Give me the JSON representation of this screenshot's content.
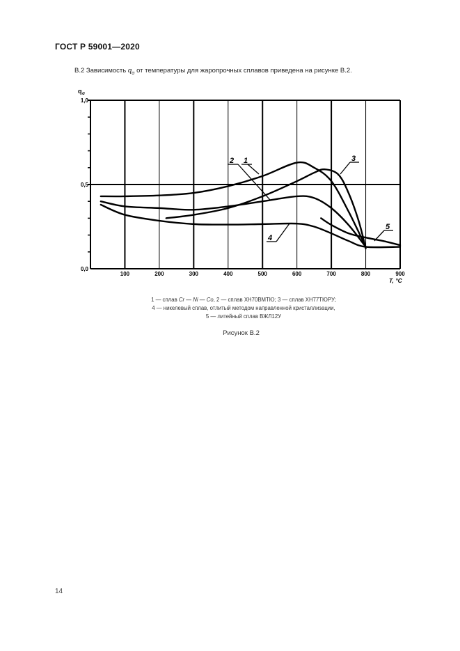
{
  "header": {
    "doc_id": "ГОСТ Р 59001—2020"
  },
  "intro": {
    "prefix": "В.2 Зависимость ",
    "symbol": "q",
    "symbol_sub": "σ",
    "suffix": " от температуры для жаропрочных сплавов приведена на рисунке В.2."
  },
  "chart_data": {
    "type": "line",
    "title": "",
    "xlabel": "T, °C",
    "ylabel": "qσ",
    "xlim": [
      0,
      900
    ],
    "ylim": [
      0.0,
      1.0
    ],
    "x_ticks": [
      100,
      200,
      300,
      400,
      500,
      600,
      700,
      800,
      900
    ],
    "x_tick_labels": [
      "100",
      "200",
      "300",
      "400",
      "500",
      "600",
      "700",
      "800",
      "900"
    ],
    "y_tick_labels": [
      "0,0",
      "0,5",
      "1,0"
    ],
    "y_ticks": [
      0.0,
      0.5,
      1.0
    ],
    "grid": true,
    "series": [
      {
        "name": "1",
        "label": "сплав Cr — Ni — Co",
        "x": [
          30,
          100,
          200,
          300,
          400,
          500,
          600,
          650,
          700,
          750,
          800
        ],
        "values": [
          0.43,
          0.43,
          0.435,
          0.45,
          0.49,
          0.55,
          0.63,
          0.6,
          0.52,
          0.34,
          0.13
        ]
      },
      {
        "name": "2",
        "label": "сплав ХН70ВМТЮ",
        "x": [
          30,
          100,
          200,
          300,
          400,
          500,
          600,
          650,
          700,
          750,
          800
        ],
        "values": [
          0.4,
          0.37,
          0.36,
          0.35,
          0.37,
          0.4,
          0.43,
          0.42,
          0.36,
          0.26,
          0.13
        ]
      },
      {
        "name": "3",
        "label": "сплав ХН77ТЮРУ",
        "x": [
          220,
          300,
          400,
          500,
          600,
          650,
          680,
          720,
          750,
          780,
          800
        ],
        "values": [
          0.3,
          0.32,
          0.36,
          0.43,
          0.52,
          0.57,
          0.59,
          0.56,
          0.45,
          0.28,
          0.12
        ]
      },
      {
        "name": "4",
        "label": "никелевый сплав, отлитый методом направленной кристаллизации",
        "x": [
          30,
          100,
          200,
          300,
          400,
          500,
          600,
          650,
          700,
          750,
          800,
          900
        ],
        "values": [
          0.38,
          0.32,
          0.285,
          0.265,
          0.262,
          0.265,
          0.268,
          0.25,
          0.21,
          0.165,
          0.13,
          0.13
        ]
      },
      {
        "name": "5",
        "label": "литейный сплав ВЖЛ12У",
        "x": [
          670,
          700,
          750,
          800,
          850,
          900
        ],
        "values": [
          0.3,
          0.26,
          0.21,
          0.185,
          0.165,
          0.14
        ]
      }
    ]
  },
  "chart_labels": {
    "y_axis_symbol": "q",
    "y_axis_sub": "σ",
    "x_axis_label": "T, °C",
    "curve_labels": [
      "1",
      "2",
      "3",
      "4",
      "5"
    ]
  },
  "caption": {
    "line1_a": "1 — сплав ",
    "line1_alloy": "Cr — Ni — Co",
    "line1_b": ", 2 — сплав ХН70ВМТЮ; 3 — сплав ХН77ТЮРУ;",
    "line2": "4 — никелевый сплав, отлитый методом направленной кристаллизации,",
    "line3": "5 — литейный сплав ВЖЛ12У"
  },
  "figure_label": "Рисунок В.2",
  "page_number": "14"
}
